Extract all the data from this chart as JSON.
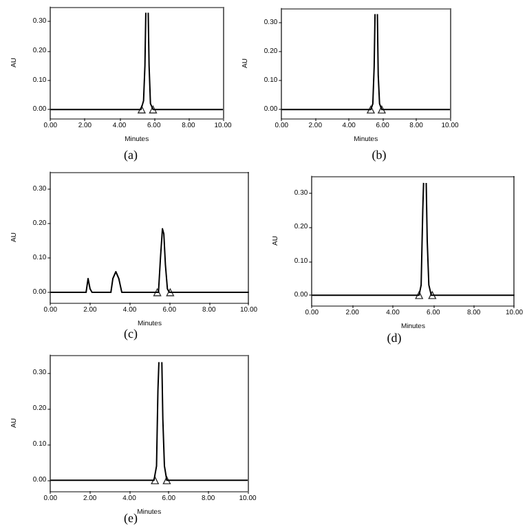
{
  "chart_data": [
    {
      "type": "line",
      "ylabel": "AU",
      "xlabel": "Minutes",
      "annotations": [
        "(a)"
      ],
      "xlim": [
        0,
        10
      ],
      "xticks": [
        {
          "value": 0,
          "label": "0.00"
        },
        {
          "value": 2,
          "label": "2.00"
        },
        {
          "value": 4,
          "label": "4.00"
        },
        {
          "value": 6,
          "label": "6.00"
        },
        {
          "value": 8,
          "label": "8.00"
        },
        {
          "value": 10,
          "label": "10.00"
        }
      ],
      "ylim": [
        -0.03,
        0.35
      ],
      "yticks": [
        {
          "value": 0,
          "label": "0.00"
        },
        {
          "value": 0.1,
          "label": "0.10"
        },
        {
          "value": 0.2,
          "label": "0.20"
        },
        {
          "value": 0.3,
          "label": "0.30"
        }
      ],
      "grid": false,
      "marker": "none",
      "line_style": "solid",
      "series": [
        {
          "color": "#000000",
          "x": [
            0,
            5.25,
            5.4,
            5.48,
            5.53,
            5.56,
            5.64,
            5.67,
            5.72,
            5.8,
            5.95,
            10
          ],
          "values": [
            0,
            0,
            0.03,
            0.15,
            0.33,
            null,
            null,
            0.33,
            0.15,
            0.02,
            0,
            0
          ]
        },
        {
          "type": "scatter",
          "marker": "triangle",
          "color": "#000000",
          "x": [
            5.29,
            5.95
          ],
          "values": [
            0,
            0
          ]
        }
      ]
    },
    {
      "type": "line",
      "ylabel": "AU",
      "xlabel": "Minutes",
      "annotations": [
        "(b)"
      ],
      "xlim": [
        0,
        10
      ],
      "xticks": [
        {
          "value": 0,
          "label": "0.00"
        },
        {
          "value": 2,
          "label": "2.00"
        },
        {
          "value": 4,
          "label": "4.00"
        },
        {
          "value": 6,
          "label": "6.00"
        },
        {
          "value": 8,
          "label": "8.00"
        },
        {
          "value": 10,
          "label": "10.00"
        }
      ],
      "ylim": [
        -0.03,
        0.35
      ],
      "yticks": [
        {
          "value": 0,
          "label": "0.00"
        },
        {
          "value": 0.1,
          "label": "0.10"
        },
        {
          "value": 0.2,
          "label": "0.20"
        },
        {
          "value": 0.3,
          "label": "0.30"
        }
      ],
      "grid": false,
      "marker": "none",
      "line_style": "solid",
      "series": [
        {
          "color": "#000000",
          "x": [
            0,
            5.3,
            5.42,
            5.5,
            5.55,
            5.58,
            5.66,
            5.69,
            5.74,
            5.82,
            5.95,
            10
          ],
          "values": [
            0,
            0,
            0.02,
            0.15,
            0.33,
            null,
            null,
            0.33,
            0.12,
            0.02,
            0,
            0
          ]
        },
        {
          "type": "scatter",
          "marker": "triangle",
          "color": "#000000",
          "x": [
            5.3,
            5.95
          ],
          "values": [
            0,
            0
          ]
        }
      ]
    },
    {
      "type": "line",
      "ylabel": "AU",
      "xlabel": "Minutes",
      "annotations": [
        "(c)"
      ],
      "xlim": [
        0,
        10
      ],
      "xticks": [
        {
          "value": 0,
          "label": "0.00"
        },
        {
          "value": 2,
          "label": "2.00"
        },
        {
          "value": 4,
          "label": "4.00"
        },
        {
          "value": 6,
          "label": "6.00"
        },
        {
          "value": 8,
          "label": "8.00"
        },
        {
          "value": 10,
          "label": "10.00"
        }
      ],
      "ylim": [
        -0.03,
        0.35
      ],
      "yticks": [
        {
          "value": 0,
          "label": "0.00"
        },
        {
          "value": 0.1,
          "label": "0.10"
        },
        {
          "value": 0.2,
          "label": "0.20"
        },
        {
          "value": 0.3,
          "label": "0.30"
        }
      ],
      "grid": false,
      "marker": "none",
      "line_style": "solid",
      "series": [
        {
          "color": "#000000",
          "x": [
            0,
            1.8,
            1.9,
            2.0,
            2.1,
            3.05,
            3.15,
            3.3,
            3.45,
            3.6,
            5.45,
            5.55,
            5.65,
            5.72,
            5.8,
            5.9,
            6.0,
            10
          ],
          "values": [
            0,
            0,
            0.04,
            0.01,
            0,
            0,
            0.04,
            0.06,
            0.04,
            0,
            0,
            0.1,
            0.185,
            0.17,
            0.08,
            0.01,
            0,
            0
          ]
        },
        {
          "type": "scatter",
          "marker": "triangle",
          "color": "#000000",
          "x": [
            5.39,
            6.04
          ],
          "values": [
            0,
            0
          ]
        }
      ]
    },
    {
      "type": "line",
      "ylabel": "AU",
      "xlabel": "Minutes",
      "annotations": [
        "(d)"
      ],
      "xlim": [
        0,
        10
      ],
      "xticks": [
        {
          "value": 0,
          "label": "0.00"
        },
        {
          "value": 2,
          "label": "2.00"
        },
        {
          "value": 4,
          "label": "4.00"
        },
        {
          "value": 6,
          "label": "6.00"
        },
        {
          "value": 8,
          "label": "8.00"
        },
        {
          "value": 10,
          "label": "10.00"
        }
      ],
      "ylim": [
        -0.03,
        0.35
      ],
      "yticks": [
        {
          "value": 0,
          "label": "0.00"
        },
        {
          "value": 0.1,
          "label": "0.10"
        },
        {
          "value": 0.2,
          "label": "0.20"
        },
        {
          "value": 0.3,
          "label": "0.30"
        }
      ],
      "grid": false,
      "marker": "none",
      "line_style": "solid",
      "series": [
        {
          "color": "#000000",
          "x": [
            0,
            5.3,
            5.4,
            5.48,
            5.52,
            5.55,
            5.62,
            5.65,
            5.7,
            5.78,
            5.9,
            10
          ],
          "values": [
            0,
            0,
            0.03,
            0.25,
            0.33,
            null,
            null,
            0.33,
            0.16,
            0.03,
            0,
            0
          ]
        },
        {
          "type": "scatter",
          "marker": "triangle",
          "color": "#000000",
          "x": [
            5.3,
            5.95
          ],
          "values": [
            0,
            0
          ]
        }
      ]
    },
    {
      "type": "line",
      "ylabel": "AU",
      "xlabel": "Minutes",
      "annotations": [
        "(e)"
      ],
      "xlim": [
        0,
        10
      ],
      "xticks": [
        {
          "value": 0,
          "label": "0.00"
        },
        {
          "value": 2,
          "label": "2.00"
        },
        {
          "value": 4,
          "label": "4.00"
        },
        {
          "value": 6,
          "label": "6.00"
        },
        {
          "value": 8,
          "label": "8.00"
        },
        {
          "value": 10,
          "label": "10.00"
        }
      ],
      "ylim": [
        -0.03,
        0.35
      ],
      "yticks": [
        {
          "value": 0,
          "label": "0.00"
        },
        {
          "value": 0.1,
          "label": "0.10"
        },
        {
          "value": 0.2,
          "label": "0.20"
        },
        {
          "value": 0.3,
          "label": "0.30"
        }
      ],
      "grid": false,
      "marker": "none",
      "line_style": "solid",
      "series": [
        {
          "color": "#000000",
          "x": [
            0,
            5.25,
            5.38,
            5.45,
            5.5,
            5.55,
            5.62,
            5.65,
            5.7,
            5.78,
            5.9,
            10
          ],
          "values": [
            0,
            0,
            0.04,
            0.25,
            0.33,
            null,
            null,
            0.33,
            0.17,
            0.04,
            0,
            0
          ]
        },
        {
          "type": "scatter",
          "marker": "triangle",
          "color": "#000000",
          "x": [
            5.3,
            5.9
          ],
          "values": [
            0,
            0
          ]
        }
      ]
    }
  ]
}
